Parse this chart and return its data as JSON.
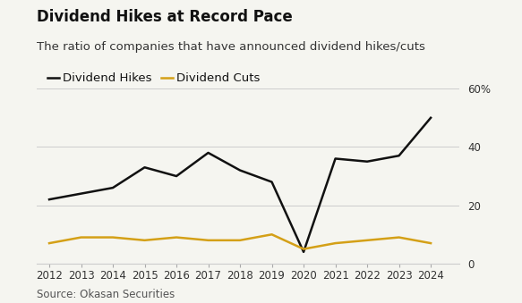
{
  "title": "Dividend Hikes at Record Pace",
  "subtitle": "The ratio of companies that have announced dividend hikes/cuts",
  "source": "Source: Okasan Securities",
  "years": [
    2012,
    2013,
    2014,
    2015,
    2016,
    2017,
    2018,
    2019,
    2020,
    2021,
    2022,
    2023,
    2024
  ],
  "hikes": [
    22,
    24,
    26,
    33,
    30,
    38,
    32,
    28,
    4,
    36,
    35,
    37,
    50
  ],
  "cuts": [
    7,
    9,
    9,
    8,
    9,
    8,
    8,
    10,
    5,
    7,
    8,
    9,
    7
  ],
  "hikes_color": "#111111",
  "cuts_color": "#d4a017",
  "ylim": [
    0,
    60
  ],
  "yticks": [
    0,
    20,
    40,
    60
  ],
  "ytick_labels": [
    "0",
    "20",
    "40",
    "60%"
  ],
  "background_color": "#f5f5f0",
  "grid_color": "#cccccc",
  "title_fontsize": 12,
  "subtitle_fontsize": 9.5,
  "legend_fontsize": 9.5,
  "axis_fontsize": 8.5,
  "source_fontsize": 8.5
}
